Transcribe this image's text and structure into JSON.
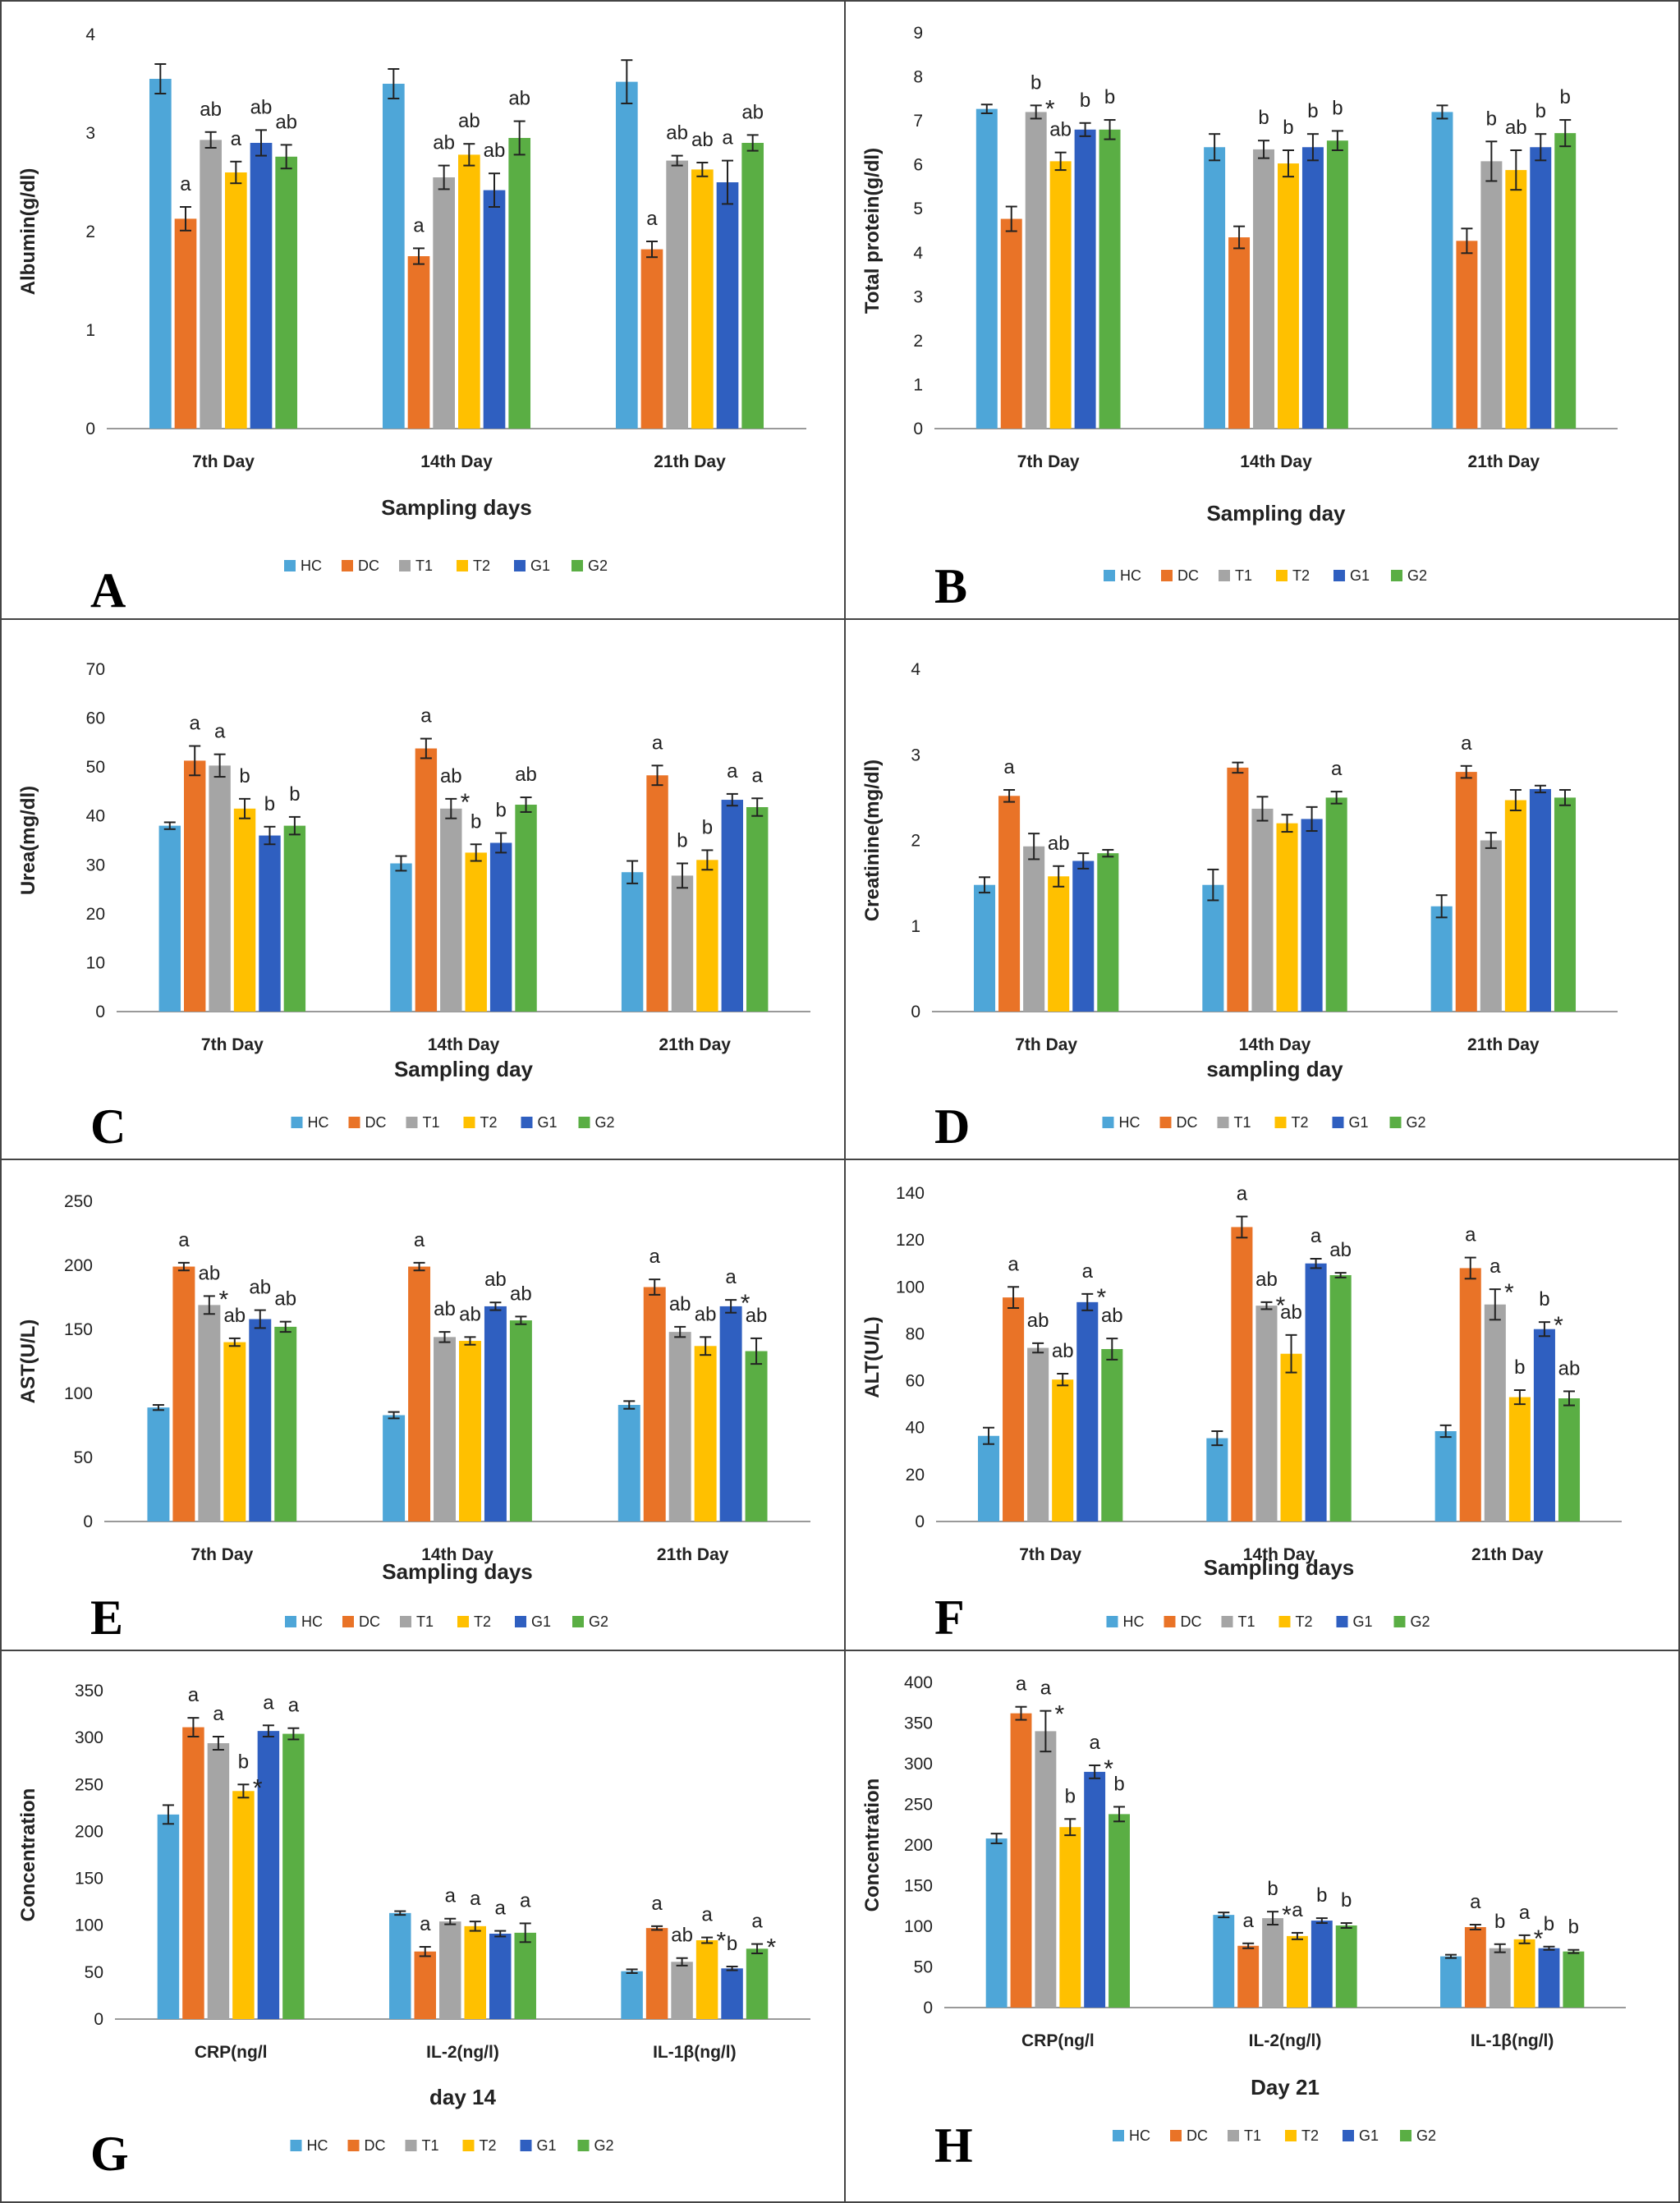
{
  "colors": {
    "HC": "#4EA6D8",
    "DC": "#E97327",
    "T1": "#A5A5A5",
    "T2": "#FFC000",
    "G1": "#2F5FC0",
    "G2": "#5AAE44"
  },
  "legend_labels": [
    "HC",
    "DC",
    "T1",
    "T2",
    "G1",
    "G2"
  ],
  "chart_data": [
    {
      "panel": "A",
      "type": "bar",
      "ylabel": "Albumin(g/dl)",
      "xlabel": "Sampling days",
      "ylim": [
        0,
        4
      ],
      "yticks": [
        0,
        1,
        2,
        3,
        4
      ],
      "categories": [
        "7th Day",
        "14th Day",
        "21th Day"
      ],
      "series": [
        {
          "name": "HC",
          "values": [
            3.55,
            3.5,
            3.52
          ],
          "errors": [
            0.15,
            0.15,
            0.22
          ],
          "labels": [
            "",
            "",
            ""
          ]
        },
        {
          "name": "DC",
          "values": [
            2.13,
            1.75,
            1.82
          ],
          "errors": [
            0.12,
            0.08,
            0.08
          ],
          "labels": [
            "a",
            "a",
            "a"
          ]
        },
        {
          "name": "T1",
          "values": [
            2.93,
            2.55,
            2.72
          ],
          "errors": [
            0.08,
            0.12,
            0.05
          ],
          "labels": [
            "ab",
            "ab",
            "ab"
          ]
        },
        {
          "name": "T2",
          "values": [
            2.6,
            2.78,
            2.63
          ],
          "errors": [
            0.11,
            0.11,
            0.07
          ],
          "labels": [
            "a",
            "ab",
            "ab"
          ]
        },
        {
          "name": "G1",
          "values": [
            2.9,
            2.42,
            2.5
          ],
          "errors": [
            0.13,
            0.17,
            0.22
          ],
          "labels": [
            "ab",
            "ab",
            "a"
          ]
        },
        {
          "name": "G2",
          "values": [
            2.76,
            2.95,
            2.9
          ],
          "errors": [
            0.12,
            0.17,
            0.08
          ],
          "labels": [
            "ab",
            "ab",
            "ab"
          ]
        }
      ],
      "stars": []
    },
    {
      "panel": "B",
      "type": "bar",
      "ylabel": "Total protein(g/dl)",
      "xlabel": "Sampling day",
      "ylim": [
        0,
        9
      ],
      "yticks": [
        0,
        1,
        2,
        3,
        4,
        5,
        6,
        7,
        8,
        9
      ],
      "categories": [
        "7th Day",
        "14th Day",
        "21th Day"
      ],
      "series": [
        {
          "name": "HC",
          "values": [
            7.27,
            6.4,
            7.2
          ],
          "errors": [
            0.1,
            0.3,
            0.15
          ],
          "labels": [
            "",
            "",
            ""
          ]
        },
        {
          "name": "DC",
          "values": [
            4.77,
            4.35,
            4.27
          ],
          "errors": [
            0.28,
            0.25,
            0.28
          ],
          "labels": [
            "",
            "",
            ""
          ]
        },
        {
          "name": "T1",
          "values": [
            7.2,
            6.35,
            6.08
          ],
          "errors": [
            0.15,
            0.2,
            0.45
          ],
          "labels": [
            "b",
            "b",
            "b"
          ]
        },
        {
          "name": "T2",
          "values": [
            6.08,
            6.03,
            5.88
          ],
          "errors": [
            0.2,
            0.3,
            0.45
          ],
          "labels": [
            "ab",
            "b",
            "ab"
          ]
        },
        {
          "name": "G1",
          "values": [
            6.8,
            6.4,
            6.4
          ],
          "errors": [
            0.15,
            0.3,
            0.3
          ],
          "labels": [
            "b",
            "b",
            "b"
          ]
        },
        {
          "name": "G2",
          "values": [
            6.8,
            6.55,
            6.72
          ],
          "errors": [
            0.22,
            0.22,
            0.3
          ],
          "labels": [
            "b",
            "b",
            "b"
          ]
        }
      ],
      "stars": [
        {
          "group": 0,
          "series": 2
        }
      ]
    },
    {
      "panel": "C",
      "type": "bar",
      "ylabel": "Urea(mg/dl)",
      "xlabel": "Sampling day",
      "ylim": [
        0,
        70
      ],
      "yticks": [
        0,
        10,
        20,
        30,
        40,
        50,
        60,
        70
      ],
      "categories": [
        "7th Day",
        "14th Day",
        "21th Day"
      ],
      "series": [
        {
          "name": "HC",
          "values": [
            38,
            30.3,
            28.5
          ],
          "errors": [
            0.7,
            1.5,
            2.3
          ],
          "labels": [
            "",
            "",
            ""
          ]
        },
        {
          "name": "DC",
          "values": [
            51.3,
            53.8,
            48.3
          ],
          "errors": [
            3,
            2,
            2
          ],
          "labels": [
            "a",
            "a",
            "a"
          ]
        },
        {
          "name": "T1",
          "values": [
            50.3,
            41.5,
            27.8
          ],
          "errors": [
            2.3,
            2,
            2.5
          ],
          "labels": [
            "a",
            "ab",
            "b"
          ]
        },
        {
          "name": "T2",
          "values": [
            41.5,
            32.5,
            31
          ],
          "errors": [
            2,
            1.7,
            2
          ],
          "labels": [
            "b",
            "b",
            "b"
          ]
        },
        {
          "name": "G1",
          "values": [
            36,
            34.5,
            43.3
          ],
          "errors": [
            1.8,
            2,
            1.2
          ],
          "labels": [
            "b",
            "b",
            "a"
          ]
        },
        {
          "name": "G2",
          "values": [
            38,
            42.3,
            41.8
          ],
          "errors": [
            1.8,
            1.5,
            1.8
          ],
          "labels": [
            "b",
            "ab",
            "a"
          ]
        }
      ],
      "stars": [
        {
          "group": 1,
          "series": 2
        }
      ]
    },
    {
      "panel": "D",
      "type": "bar",
      "ylabel": "Creatinine(mg/dl)",
      "xlabel": "sampling day",
      "ylim": [
        0,
        4
      ],
      "yticks": [
        0,
        1,
        2,
        3,
        4
      ],
      "categories": [
        "7th Day",
        "14th Day",
        "21th Day"
      ],
      "series": [
        {
          "name": "HC",
          "values": [
            1.48,
            1.48,
            1.23
          ],
          "errors": [
            0.09,
            0.18,
            0.13
          ],
          "labels": [
            "",
            "",
            ""
          ]
        },
        {
          "name": "DC",
          "values": [
            2.52,
            2.85,
            2.8
          ],
          "errors": [
            0.07,
            0.06,
            0.07
          ],
          "labels": [
            "a",
            "",
            "a"
          ]
        },
        {
          "name": "T1",
          "values": [
            1.93,
            2.37,
            2
          ],
          "errors": [
            0.15,
            0.14,
            0.09
          ],
          "labels": [
            "",
            "",
            ""
          ]
        },
        {
          "name": "T2",
          "values": [
            1.58,
            2.2,
            2.47
          ],
          "errors": [
            0.12,
            0.1,
            0.12
          ],
          "labels": [
            "ab",
            "",
            ""
          ]
        },
        {
          "name": "G1",
          "values": [
            1.76,
            2.25,
            2.6
          ],
          "errors": [
            0.09,
            0.14,
            0.04
          ],
          "labels": [
            "",
            "",
            ""
          ]
        },
        {
          "name": "G2",
          "values": [
            1.85,
            2.5,
            2.5
          ],
          "errors": [
            0.04,
            0.07,
            0.09
          ],
          "labels": [
            "",
            "a",
            ""
          ]
        }
      ],
      "stars": []
    },
    {
      "panel": "E",
      "type": "bar",
      "ylabel": "AST(U/L)",
      "xlabel": "Sampling days",
      "ylim": [
        0,
        250
      ],
      "yticks": [
        0,
        50,
        100,
        150,
        200,
        250
      ],
      "categories": [
        "7th Day",
        "14th Day",
        "21th Day"
      ],
      "series": [
        {
          "name": "HC",
          "values": [
            89,
            83,
            91
          ],
          "errors": [
            2,
            2.5,
            3
          ],
          "labels": [
            "",
            "",
            ""
          ]
        },
        {
          "name": "DC",
          "values": [
            199,
            199,
            183
          ],
          "errors": [
            3,
            3,
            6
          ],
          "labels": [
            "a",
            "a",
            "a"
          ]
        },
        {
          "name": "T1",
          "values": [
            169,
            144,
            148
          ],
          "errors": [
            7,
            4,
            4
          ],
          "labels": [
            "ab",
            "ab",
            "ab"
          ]
        },
        {
          "name": "T2",
          "values": [
            140,
            141,
            137
          ],
          "errors": [
            3,
            3,
            7
          ],
          "labels": [
            "ab",
            "ab",
            "ab"
          ]
        },
        {
          "name": "G1",
          "values": [
            158,
            168,
            168
          ],
          "errors": [
            7,
            3,
            5
          ],
          "labels": [
            "ab",
            "ab",
            "a"
          ]
        },
        {
          "name": "G2",
          "values": [
            152,
            157,
            133
          ],
          "errors": [
            4,
            3,
            10
          ],
          "labels": [
            "ab",
            "ab",
            "ab"
          ]
        }
      ],
      "stars": [
        {
          "group": 0,
          "series": 2
        },
        {
          "group": 2,
          "series": 4
        }
      ]
    },
    {
      "panel": "F",
      "type": "bar",
      "ylabel": "ALT(U/L)",
      "xlabel": "Sampling days",
      "ylim": [
        0,
        140
      ],
      "yticks": [
        0,
        20,
        40,
        60,
        80,
        100,
        120,
        140
      ],
      "categories": [
        "7th Day",
        "14th Day",
        "21th Day"
      ],
      "series": [
        {
          "name": "HC",
          "values": [
            36.5,
            35.5,
            38.5
          ],
          "errors": [
            3.5,
            3,
            2.5
          ],
          "labels": [
            "",
            "",
            ""
          ]
        },
        {
          "name": "DC",
          "values": [
            95.5,
            125.5,
            108
          ],
          "errors": [
            4.5,
            4.5,
            4.5
          ],
          "labels": [
            "a",
            "a",
            "a"
          ]
        },
        {
          "name": "T1",
          "values": [
            74,
            92,
            92.5
          ],
          "errors": [
            2,
            1.5,
            6.5
          ],
          "labels": [
            "ab",
            "ab",
            "a"
          ]
        },
        {
          "name": "T2",
          "values": [
            60.5,
            71.5,
            53
          ],
          "errors": [
            2.5,
            8,
            3
          ],
          "labels": [
            "ab",
            "ab",
            "b"
          ]
        },
        {
          "name": "G1",
          "values": [
            93.5,
            110,
            82
          ],
          "errors": [
            3.5,
            2,
            3
          ],
          "labels": [
            "a",
            "a",
            "b"
          ]
        },
        {
          "name": "G2",
          "values": [
            73.5,
            105,
            52.5
          ],
          "errors": [
            4.5,
            1,
            3
          ],
          "labels": [
            "ab",
            "ab",
            "ab"
          ]
        }
      ],
      "stars": [
        {
          "group": 1,
          "series": 2
        },
        {
          "group": 0,
          "series": 4
        },
        {
          "group": 2,
          "series": 2
        },
        {
          "group": 2,
          "series": 4
        }
      ]
    },
    {
      "panel": "G",
      "type": "bar",
      "ylabel": "Concentration",
      "xlabel": "day 14",
      "ylim": [
        0,
        350
      ],
      "yticks": [
        0,
        50,
        100,
        150,
        200,
        250,
        300,
        350
      ],
      "categories": [
        "CRP(ng/l",
        "IL-2(ng/l)",
        "IL-1β(ng/l)"
      ],
      "series": [
        {
          "name": "HC",
          "values": [
            218,
            113,
            51
          ],
          "errors": [
            10,
            2,
            2
          ],
          "labels": [
            "",
            "",
            ""
          ]
        },
        {
          "name": "DC",
          "values": [
            311,
            72,
            97
          ],
          "errors": [
            10,
            5,
            2
          ],
          "labels": [
            "a",
            "a",
            "a"
          ]
        },
        {
          "name": "T1",
          "values": [
            294,
            104,
            61
          ],
          "errors": [
            7,
            3,
            4
          ],
          "labels": [
            "a",
            "a",
            "ab"
          ]
        },
        {
          "name": "T2",
          "values": [
            243,
            99,
            84
          ],
          "errors": [
            7,
            5,
            3
          ],
          "labels": [
            "b",
            "a",
            "a"
          ]
        },
        {
          "name": "G1",
          "values": [
            307,
            91,
            54
          ],
          "errors": [
            6,
            3,
            2
          ],
          "labels": [
            "a",
            "a",
            "b"
          ]
        },
        {
          "name": "G2",
          "values": [
            304,
            92,
            75
          ],
          "errors": [
            6,
            10,
            5
          ],
          "labels": [
            "a",
            "a",
            "a"
          ]
        }
      ],
      "stars": [
        {
          "group": 0,
          "series": 3
        },
        {
          "group": 2,
          "series": 3
        },
        {
          "group": 2,
          "series": 5
        }
      ]
    },
    {
      "panel": "H",
      "type": "bar",
      "ylabel": "Concentration",
      "xlabel": "Day 21",
      "ylim": [
        0,
        400
      ],
      "yticks": [
        0,
        50,
        100,
        150,
        200,
        250,
        300,
        350,
        400
      ],
      "categories": [
        "CRP(ng/l",
        "IL-2(ng/l)",
        "IL-1β(ng/l)"
      ],
      "series": [
        {
          "name": "HC",
          "values": [
            208,
            114,
            63
          ],
          "errors": [
            6,
            3,
            2
          ],
          "labels": [
            "",
            "",
            ""
          ]
        },
        {
          "name": "DC",
          "values": [
            362,
            76,
            99
          ],
          "errors": [
            8,
            3,
            3
          ],
          "labels": [
            "a",
            "a",
            "a"
          ]
        },
        {
          "name": "T1",
          "values": [
            340,
            110,
            73
          ],
          "errors": [
            25,
            8,
            5
          ],
          "labels": [
            "a",
            "b",
            "b"
          ]
        },
        {
          "name": "T2",
          "values": [
            222,
            88,
            84
          ],
          "errors": [
            10,
            4,
            5
          ],
          "labels": [
            "b",
            "a",
            "a"
          ]
        },
        {
          "name": "G1",
          "values": [
            290,
            107,
            73
          ],
          "errors": [
            8,
            3,
            2
          ],
          "labels": [
            "a",
            "b",
            "b"
          ]
        },
        {
          "name": "G2",
          "values": [
            238,
            101,
            69
          ],
          "errors": [
            9,
            3,
            2
          ],
          "labels": [
            "b",
            "b",
            "b"
          ]
        }
      ],
      "stars": [
        {
          "group": 0,
          "series": 2
        },
        {
          "group": 0,
          "series": 4
        },
        {
          "group": 1,
          "series": 2
        },
        {
          "group": 2,
          "series": 3
        }
      ]
    }
  ]
}
